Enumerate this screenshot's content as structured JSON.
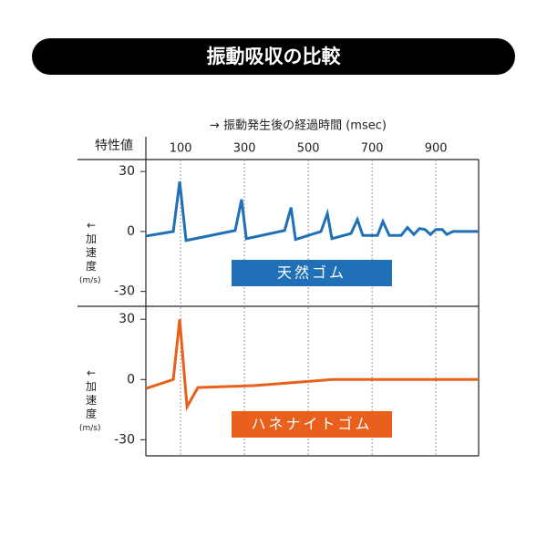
{
  "title": "振動吸収の比較",
  "header": "特性値",
  "chart_data": [
    {
      "type": "line",
      "xlabel": "→ 振動発生後の経過時間 (msec)",
      "xlim": [
        -9,
        1034
      ],
      "xticks": [
        100,
        300,
        500,
        700,
        900
      ],
      "ylim": [
        -37,
        36
      ],
      "yticks": [
        -30,
        0,
        30
      ],
      "ylabel": "←加速度",
      "yunit": "(m/s)",
      "grid": true,
      "series": [
        {
          "name": "天然ゴム",
          "color": "#1f70b6",
          "x": [
            -9,
            77,
            97,
            117,
            271,
            291,
            306,
            426,
            446,
            460,
            540,
            560,
            574,
            634,
            654,
            671,
            717,
            734,
            754,
            791,
            811,
            831,
            849,
            866,
            883,
            900,
            920,
            934,
            954,
            1034
          ],
          "values": [
            -2.3,
            0,
            25,
            -4.5,
            0.5,
            16,
            -3.6,
            0.5,
            12,
            -4,
            0,
            9,
            -3.6,
            -1,
            6,
            -2,
            -2,
            5,
            -2,
            -2,
            2,
            -1.5,
            1.5,
            1,
            -1.5,
            1,
            1,
            -1.5,
            0,
            0
          ]
        }
      ]
    },
    {
      "type": "line",
      "xlim": [
        -9,
        1034
      ],
      "xticks": [
        100,
        300,
        500,
        700,
        900
      ],
      "ylim": [
        -38,
        36
      ],
      "yticks": [
        -30,
        0,
        30
      ],
      "ylabel": "←加速度",
      "yunit": "(m/s)",
      "grid": true,
      "series": [
        {
          "name": "ハネナイトゴム",
          "color": "#e8601c",
          "x": [
            -9,
            77,
            97,
            120,
            154,
            334,
            577,
            1034
          ],
          "values": [
            -4.5,
            0,
            30,
            -13.6,
            -4,
            -3,
            0,
            0
          ]
        }
      ]
    }
  ]
}
